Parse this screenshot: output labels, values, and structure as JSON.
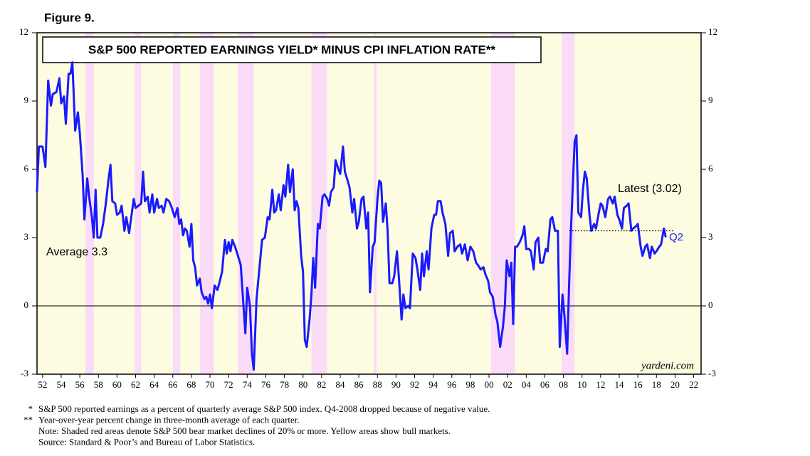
{
  "figure_label": "Figure 9.",
  "chart_data": {
    "type": "line",
    "title": "S&P 500 REPORTED EARNINGS YIELD* MINUS CPI INFLATION RATE**",
    "color": "#1a1aff",
    "bull_color": "#fdfce0",
    "bear_color": "#fadcf8",
    "bear_markets": [
      [
        1956.6,
        1957.5
      ],
      [
        1961.9,
        1962.6
      ],
      [
        1966.0,
        1966.8
      ],
      [
        1968.9,
        1970.4
      ],
      [
        1973.0,
        1974.7
      ],
      [
        1980.9,
        1982.6
      ],
      [
        1987.6,
        1987.9
      ],
      [
        2000.2,
        2002.8
      ],
      [
        2007.8,
        2009.2
      ]
    ],
    "xlim": [
      1951.4,
      2022.8
    ],
    "ylim": [
      -3,
      12
    ],
    "yticks": [
      -3,
      0,
      3,
      6,
      9,
      12
    ],
    "xticks": [
      {
        "value": 1952,
        "label": "52"
      },
      {
        "value": 1954,
        "label": "54"
      },
      {
        "value": 1956,
        "label": "56"
      },
      {
        "value": 1958,
        "label": "58"
      },
      {
        "value": 1960,
        "label": "60"
      },
      {
        "value": 1962,
        "label": "62"
      },
      {
        "value": 1964,
        "label": "64"
      },
      {
        "value": 1966,
        "label": "66"
      },
      {
        "value": 1968,
        "label": "68"
      },
      {
        "value": 1970,
        "label": "70"
      },
      {
        "value": 1972,
        "label": "72"
      },
      {
        "value": 1974,
        "label": "74"
      },
      {
        "value": 1976,
        "label": "76"
      },
      {
        "value": 1978,
        "label": "78"
      },
      {
        "value": 1980,
        "label": "80"
      },
      {
        "value": 1982,
        "label": "82"
      },
      {
        "value": 1984,
        "label": "84"
      },
      {
        "value": 1986,
        "label": "86"
      },
      {
        "value": 1988,
        "label": "88"
      },
      {
        "value": 1990,
        "label": "90"
      },
      {
        "value": 1992,
        "label": "92"
      },
      {
        "value": 1994,
        "label": "94"
      },
      {
        "value": 1996,
        "label": "96"
      },
      {
        "value": 1998,
        "label": "98"
      },
      {
        "value": 2000,
        "label": "00"
      },
      {
        "value": 2002,
        "label": "02"
      },
      {
        "value": 2004,
        "label": "04"
      },
      {
        "value": 2006,
        "label": "06"
      },
      {
        "value": 2008,
        "label": "08"
      },
      {
        "value": 2010,
        "label": "10"
      },
      {
        "value": 2012,
        "label": "12"
      },
      {
        "value": 2014,
        "label": "14"
      },
      {
        "value": 2016,
        "label": "16"
      },
      {
        "value": 2018,
        "label": "18"
      },
      {
        "value": 2020,
        "label": "20"
      },
      {
        "value": 2022,
        "label": "22"
      }
    ],
    "zero_line": 0,
    "average": 3.3,
    "annotations": {
      "average": "Average 3.3",
      "latest": "Latest (3.02)",
      "quarter": "Q2",
      "source_mark": "yardeni.com"
    },
    "x": [
      1951.4,
      1951.6,
      1952.0,
      1952.3,
      1952.6,
      1952.9,
      1953.1,
      1953.5,
      1953.8,
      1954.0,
      1954.3,
      1954.5,
      1954.8,
      1955.0,
      1955.2,
      1955.5,
      1955.8,
      1956.0,
      1956.3,
      1956.5,
      1956.8,
      1957.0,
      1957.3,
      1957.5,
      1957.7,
      1957.9,
      1958.2,
      1958.5,
      1958.8,
      1959.1,
      1959.3,
      1959.5,
      1959.8,
      1960.0,
      1960.3,
      1960.5,
      1960.8,
      1961.0,
      1961.3,
      1961.5,
      1961.8,
      1962.0,
      1962.3,
      1962.6,
      1962.8,
      1963.0,
      1963.3,
      1963.5,
      1963.8,
      1964.0,
      1964.3,
      1964.5,
      1964.8,
      1965.0,
      1965.3,
      1965.6,
      1965.9,
      1966.2,
      1966.5,
      1966.7,
      1966.9,
      1967.1,
      1967.3,
      1967.5,
      1967.8,
      1968.0,
      1968.2,
      1968.4,
      1968.6,
      1968.9,
      1969.1,
      1969.4,
      1969.6,
      1969.8,
      1970.0,
      1970.2,
      1970.5,
      1970.8,
      1971.0,
      1971.3,
      1971.6,
      1971.8,
      1972.0,
      1972.2,
      1972.4,
      1972.7,
      1973.0,
      1973.3,
      1973.5,
      1973.8,
      1974.0,
      1974.3,
      1974.5,
      1974.7,
      1975.0,
      1975.3,
      1975.6,
      1975.9,
      1976.2,
      1976.4,
      1976.7,
      1976.9,
      1977.1,
      1977.4,
      1977.6,
      1977.9,
      1978.1,
      1978.4,
      1978.6,
      1978.9,
      1979.1,
      1979.3,
      1979.5,
      1979.8,
      1980.0,
      1980.2,
      1980.4,
      1980.7,
      1980.9,
      1981.1,
      1981.3,
      1981.6,
      1981.8,
      1982.1,
      1982.3,
      1982.6,
      1982.8,
      1983.0,
      1983.3,
      1983.5,
      1983.8,
      1984.0,
      1984.3,
      1984.5,
      1984.8,
      1985.0,
      1985.3,
      1985.5,
      1985.8,
      1986.0,
      1986.3,
      1986.5,
      1986.8,
      1987.0,
      1987.2,
      1987.5,
      1987.7,
      1988.0,
      1988.2,
      1988.4,
      1988.6,
      1988.9,
      1989.1,
      1989.3,
      1989.6,
      1989.8,
      1990.1,
      1990.3,
      1990.6,
      1990.8,
      1991.0,
      1991.3,
      1991.5,
      1991.8,
      1992.1,
      1992.3,
      1992.6,
      1992.8,
      1993.0,
      1993.3,
      1993.5,
      1993.8,
      1994.1,
      1994.3,
      1994.5,
      1994.8,
      1995.0,
      1995.3,
      1995.6,
      1995.8,
      1996.1,
      1996.3,
      1996.6,
      1996.9,
      1997.1,
      1997.4,
      1997.7,
      1998.0,
      1998.3,
      1998.6,
      1998.8,
      1999.1,
      1999.4,
      1999.6,
      1999.9,
      2000.1,
      2000.4,
      2000.7,
      2000.9,
      2001.2,
      2001.5,
      2001.7,
      2001.9,
      2002.2,
      2002.4,
      2002.6,
      2002.8,
      2003.0,
      2003.3,
      2003.6,
      2003.8,
      2004.0,
      2004.3,
      2004.5,
      2004.8,
      2005.0,
      2005.3,
      2005.5,
      2005.8,
      2006.1,
      2006.3,
      2006.6,
      2006.8,
      2007.1,
      2007.4,
      2007.6,
      2007.9,
      2008.1,
      2008.4,
      2008.6,
      2008.8,
      2009.2,
      2009.4,
      2009.6,
      2009.9,
      2010.1,
      2010.3,
      2010.5,
      2010.8,
      2011.0,
      2011.3,
      2011.5,
      2011.8,
      2012.0,
      2012.2,
      2012.5,
      2012.8,
      2013.0,
      2013.3,
      2013.5,
      2013.8,
      2014.0,
      2014.3,
      2014.5,
      2014.8,
      2015.0,
      2015.3,
      2015.5,
      2015.8,
      2016.0,
      2016.3,
      2016.5,
      2016.8,
      2017.0,
      2017.3,
      2017.5,
      2017.8,
      2018.0,
      2018.3,
      2018.5,
      2018.8,
      2019.0
    ],
    "values": [
      5.0,
      7.0,
      7.0,
      6.1,
      9.9,
      8.8,
      9.3,
      9.4,
      10.0,
      8.9,
      9.2,
      8.0,
      10.2,
      10.2,
      10.7,
      7.7,
      8.5,
      7.6,
      5.8,
      3.8,
      5.6,
      4.8,
      3.9,
      3.0,
      5.1,
      3.0,
      3.0,
      3.6,
      4.5,
      5.6,
      6.2,
      4.6,
      4.5,
      4.0,
      4.1,
      4.4,
      3.3,
      3.9,
      3.2,
      3.8,
      4.7,
      4.3,
      4.4,
      4.5,
      5.9,
      4.6,
      4.8,
      4.1,
      4.9,
      4.1,
      4.7,
      4.3,
      4.4,
      4.1,
      4.7,
      4.6,
      4.3,
      3.9,
      4.3,
      3.6,
      3.8,
      3.1,
      3.4,
      3.3,
      2.6,
      3.6,
      2.0,
      1.7,
      0.9,
      1.2,
      0.6,
      0.3,
      0.4,
      0.1,
      0.5,
      -0.1,
      0.9,
      0.7,
      1.0,
      1.5,
      2.9,
      2.3,
      2.8,
      2.4,
      2.9,
      2.6,
      2.2,
      1.8,
      0.6,
      -1.2,
      0.8,
      0.0,
      -2.1,
      -2.8,
      0.3,
      1.6,
      2.9,
      3.0,
      3.9,
      3.8,
      5.1,
      4.1,
      4.2,
      4.9,
      4.2,
      5.3,
      4.8,
      6.2,
      5.0,
      6.0,
      4.2,
      4.6,
      4.3,
      2.2,
      1.5,
      -1.5,
      -1.8,
      -0.6,
      0.5,
      2.1,
      0.8,
      3.6,
      3.4,
      4.8,
      4.9,
      4.7,
      4.4,
      5.0,
      5.2,
      6.4,
      6.0,
      5.8,
      7.0,
      5.9,
      5.5,
      5.2,
      4.1,
      4.7,
      3.4,
      3.7,
      4.7,
      4.8,
      3.4,
      4.1,
      0.6,
      2.6,
      2.8,
      4.7,
      5.5,
      5.4,
      3.7,
      4.5,
      3.3,
      1.0,
      1.0,
      1.3,
      2.4,
      1.3,
      -0.6,
      0.5,
      -0.1,
      0.0,
      -0.1,
      2.3,
      2.1,
      1.6,
      0.7,
      2.3,
      1.3,
      2.4,
      1.6,
      3.4,
      4.0,
      4.0,
      4.6,
      4.6,
      4.1,
      3.6,
      2.2,
      3.2,
      3.3,
      2.4,
      2.6,
      2.7,
      2.3,
      2.7,
      2.0,
      2.6,
      2.4,
      1.9,
      1.8,
      1.6,
      1.7,
      1.4,
      1.1,
      0.6,
      0.4,
      -0.4,
      -0.7,
      -1.8,
      -0.9,
      0.0,
      2.0,
      1.3,
      1.9,
      -0.8,
      2.6,
      2.6,
      2.8,
      3.1,
      3.5,
      2.5,
      2.5,
      2.4,
      1.6,
      2.8,
      3.0,
      1.9,
      1.9,
      2.5,
      2.4,
      3.8,
      3.9,
      3.3,
      3.3,
      -1.8,
      0.5,
      -0.4,
      -2.1,
      0.8,
      3.3,
      7.2,
      7.5,
      4.1,
      3.9,
      5.1,
      5.9,
      5.6,
      4.0,
      3.3,
      3.6,
      3.4,
      4.1,
      4.5,
      4.4,
      3.9,
      4.7,
      4.8,
      4.5,
      4.8,
      4.0,
      3.8,
      3.4,
      4.3,
      4.4,
      4.5,
      3.3,
      3.4,
      3.5,
      3.6,
      2.6,
      2.2,
      2.6,
      2.7,
      2.1,
      2.6,
      2.3,
      2.4,
      2.6,
      2.7,
      3.4,
      3.02
    ]
  },
  "footnotes": [
    {
      "marker": "*",
      "text": "S&P 500 reported earnings as a percent of quarterly average S&P 500 index. Q4-2008 dropped because of negative value."
    },
    {
      "marker": "**",
      "text": "Year-over-year percent change in three-month average of each quarter."
    },
    {
      "text": "Note: Shaded red areas denote S&P 500 bear market declines of 20% or more. Yellow areas show bull markets."
    },
    {
      "text": "Source: Standard & Poor’s and Bureau of Labor Statistics."
    }
  ]
}
